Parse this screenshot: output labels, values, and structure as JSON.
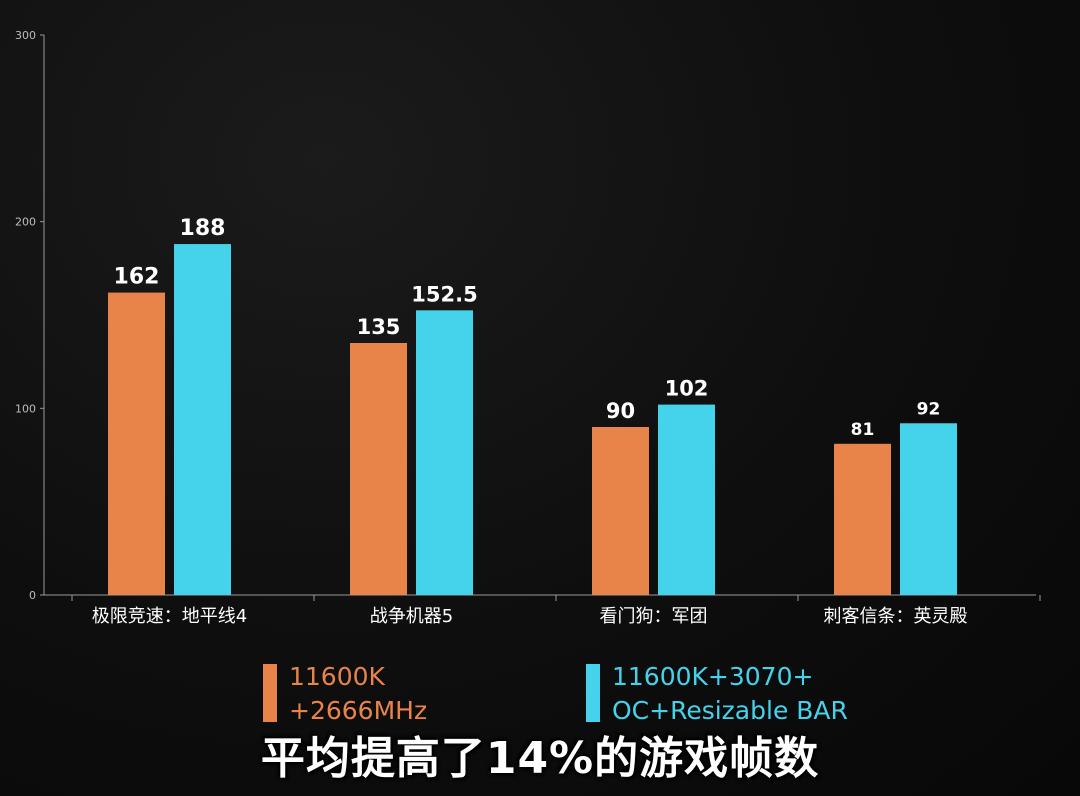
{
  "chart_data": {
    "type": "bar",
    "categories": [
      "极限竞速：地平线4",
      "战争机器5",
      "看门狗：军团",
      "刺客信条：英灵殿"
    ],
    "series": [
      {
        "name": "11600K\n+2666MHz",
        "color": "#e8844a",
        "values": [
          162,
          135,
          90,
          81
        ],
        "value_labels": [
          "162",
          "135",
          "90",
          "81"
        ]
      },
      {
        "name": "11600K+3070+\nOC+Resizable BAR",
        "color": "#45d3ec",
        "values": [
          188,
          152.5,
          102,
          92
        ],
        "value_labels": [
          "188",
          "152.5",
          "102",
          "92"
        ]
      }
    ],
    "ylim": [
      0,
      300
    ],
    "yticks": [
      "0",
      "100",
      "200",
      "300"
    ],
    "grid": false,
    "legend_position": "bottom"
  },
  "subtitle": "平均提高了14%的游戏帧数"
}
